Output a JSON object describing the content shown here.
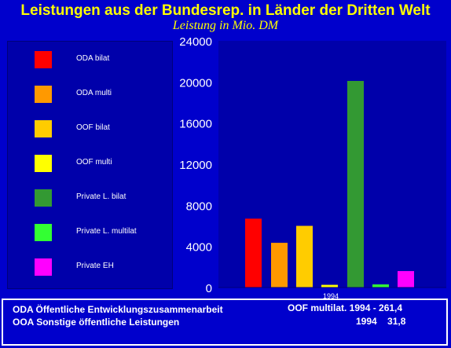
{
  "header": {
    "title": "Leistungen aus der Bundesrep. in Länder der Dritten Welt",
    "subtitle": "Leistung in Mio. DM"
  },
  "chart_data": {
    "type": "bar",
    "title": "Leistungen aus der Bundesrep. in Länder der Dritten Welt",
    "subtitle": "Leistung in Mio. DM",
    "categories": [
      "1994"
    ],
    "ylim": [
      0,
      24000
    ],
    "yticks": [
      "0",
      "4000",
      "8000",
      "12000",
      "16000",
      "20000",
      "24000"
    ],
    "grid": false,
    "legend_position": "left",
    "series": [
      {
        "name": "ODA bilat",
        "values": [
          6700
        ],
        "color": "#ff0000"
      },
      {
        "name": "ODA multi",
        "values": [
          4350
        ],
        "color": "#ff9900"
      },
      {
        "name": "OOF bilat",
        "values": [
          6000
        ],
        "color": "#ffcc00"
      },
      {
        "name": "OOF multi",
        "values": [
          261.4
        ],
        "color": "#ffff00"
      },
      {
        "name": "Private L. bilat",
        "values": [
          20100
        ],
        "color": "#339933"
      },
      {
        "name": "Private L. multilat",
        "values": [
          300
        ],
        "color": "#33ff33"
      },
      {
        "name": "Private EH",
        "values": [
          1600
        ],
        "color": "#ff00ff"
      }
    ]
  },
  "notes": {
    "line1_left": "ODA Öffentliche Entwicklungszusammenarbeit",
    "line2_left": "OOA Sonstige öffentliche Leistungen",
    "line1_right": "OOF multilat. 1994 - 261,4",
    "line2_right": "1994    31,8"
  }
}
